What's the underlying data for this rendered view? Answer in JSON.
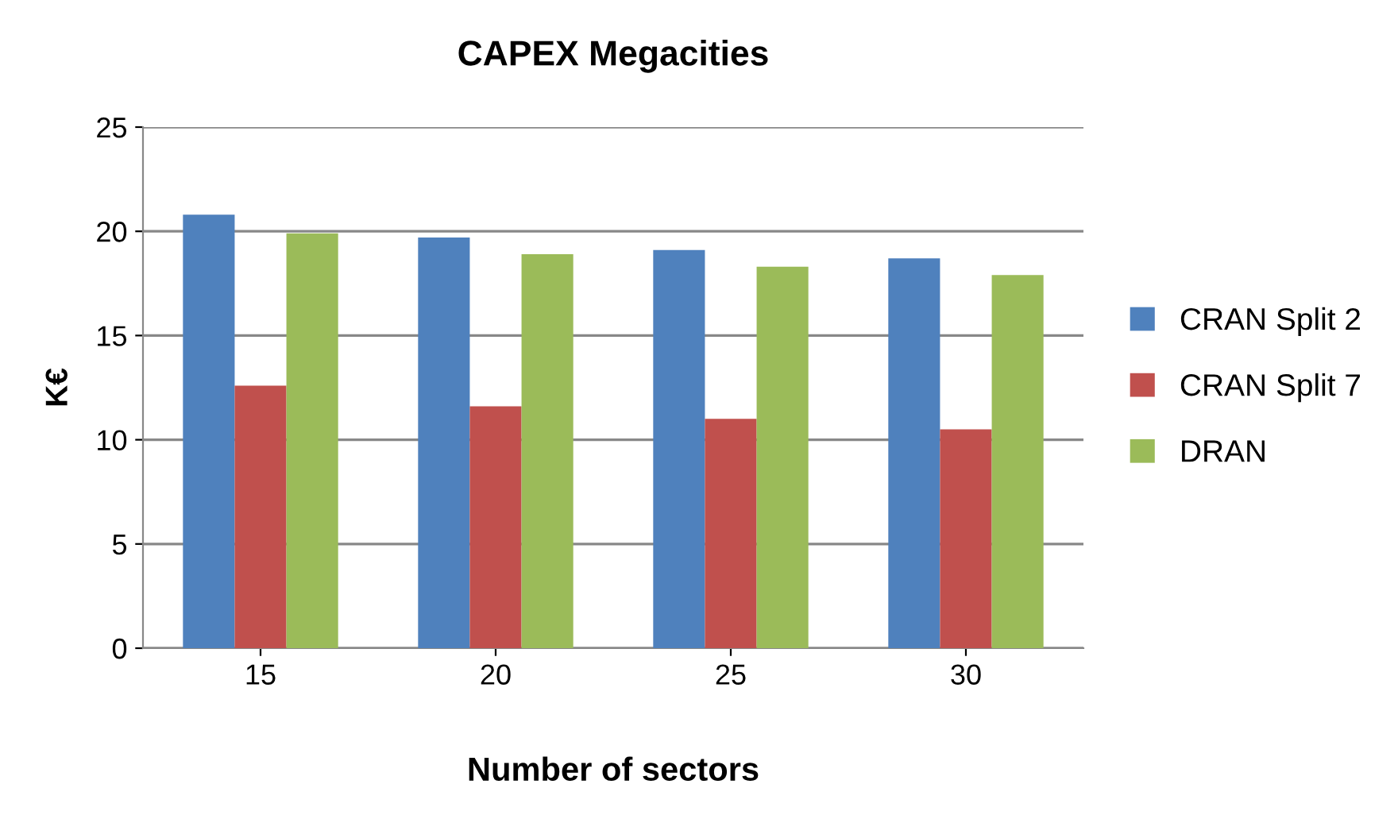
{
  "chart_data": {
    "type": "bar",
    "title": "CAPEX Megacities",
    "xlabel": "Number of sectors",
    "ylabel": "K€",
    "categories": [
      "15",
      "20",
      "25",
      "30"
    ],
    "series": [
      {
        "name": "CRAN Split 2",
        "color": "#4f81bd",
        "values": [
          20.8,
          19.7,
          19.1,
          18.7
        ]
      },
      {
        "name": "CRAN Split 7",
        "color": "#c0504d",
        "values": [
          12.6,
          11.6,
          11.0,
          10.5
        ]
      },
      {
        "name": "DRAN",
        "color": "#9bbb59",
        "values": [
          19.9,
          18.9,
          18.3,
          17.9
        ]
      }
    ],
    "ylim": [
      0,
      25
    ],
    "yticks": [
      0,
      5,
      10,
      15,
      20,
      25
    ],
    "grid": "y",
    "legend": "right"
  }
}
